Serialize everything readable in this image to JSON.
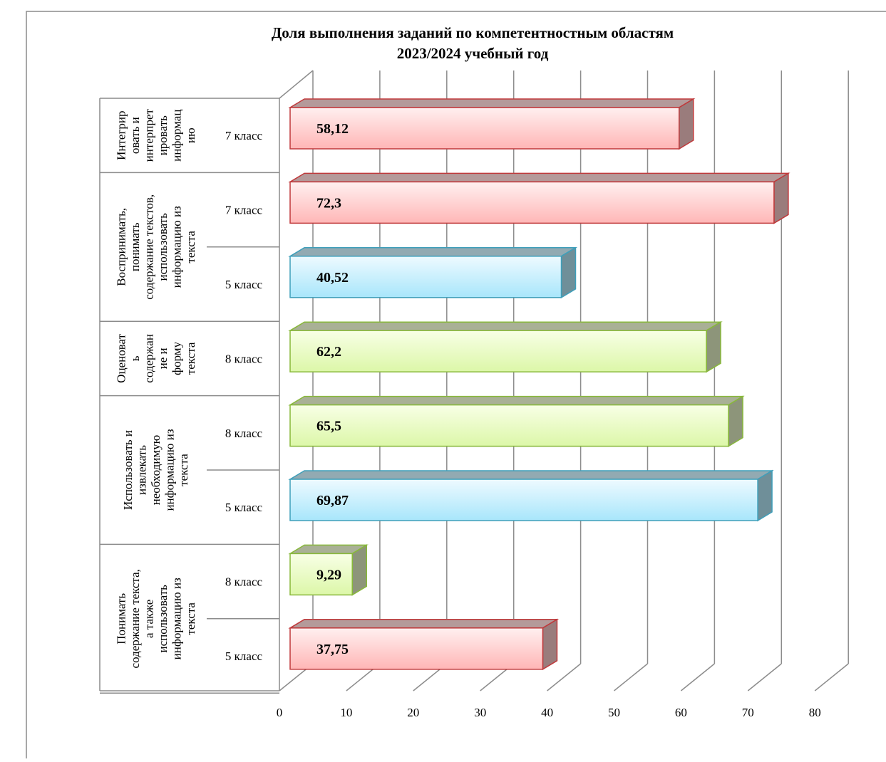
{
  "chart_data": {
    "type": "bar",
    "orientation": "horizontal",
    "style": "3d-clustered",
    "title": [
      "Доля выполнения заданий по компетентностным областям",
      "2023/2024 учебный год"
    ],
    "x_ticks": [
      "0",
      "10",
      "20",
      "30",
      "40",
      "50",
      "60",
      "70",
      "80"
    ],
    "xlim": [
      0,
      80
    ],
    "grid": true,
    "bars": [
      {
        "group": [
          "Интегрир",
          "овать и",
          "интерпрет",
          "ировать",
          "информац",
          "ию"
        ],
        "category": "7 класс",
        "value": 58.12,
        "label": "58,12",
        "color": "red"
      },
      {
        "group": [
          "Воспринимать,",
          "понимать",
          "содержание текстов,",
          "использовать",
          "информацию из",
          "текста"
        ],
        "category": "7 класс",
        "value": 72.3,
        "label": "72,3",
        "color": "red"
      },
      {
        "group": null,
        "category": "5 класс",
        "value": 40.52,
        "label": "40,52",
        "color": "blue"
      },
      {
        "group": [
          "Оценоват",
          "ь",
          "содержан",
          "ие и",
          "форму",
          "текста"
        ],
        "category": "8 класс",
        "value": 62.2,
        "label": "62,2",
        "color": "green"
      },
      {
        "group": [
          "Использовать и",
          "извлекать",
          "необходимую",
          "информацию из",
          "текста"
        ],
        "category": "8 класс",
        "value": 65.5,
        "label": "65,5",
        "color": "green"
      },
      {
        "group": null,
        "category": "5 класс",
        "value": 69.87,
        "label": "69,87",
        "color": "blue"
      },
      {
        "group": [
          "Понимать",
          "содержание текста,",
          "а также",
          "использовать",
          "информацию из",
          "текста"
        ],
        "category": "8 класс",
        "value": 9.29,
        "label": "9,29",
        "color": "green"
      },
      {
        "group": null,
        "category": "5 класс",
        "value": 37.75,
        "label": "37,75",
        "color": "red"
      }
    ],
    "colors": {
      "red": {
        "light": "#fff0f0",
        "main": "#ffb6b6",
        "edge": "#c0393b",
        "top": "#b49a9a",
        "side": "#9a7c7c"
      },
      "blue": {
        "light": "#eefaff",
        "main": "#a8e6fb",
        "edge": "#3f9fba",
        "top": "#92aab2",
        "side": "#6f8f99"
      },
      "green": {
        "light": "#f8ffe6",
        "main": "#dcf7a8",
        "edge": "#88b83a",
        "top": "#a9b096",
        "side": "#8d957a"
      }
    }
  }
}
